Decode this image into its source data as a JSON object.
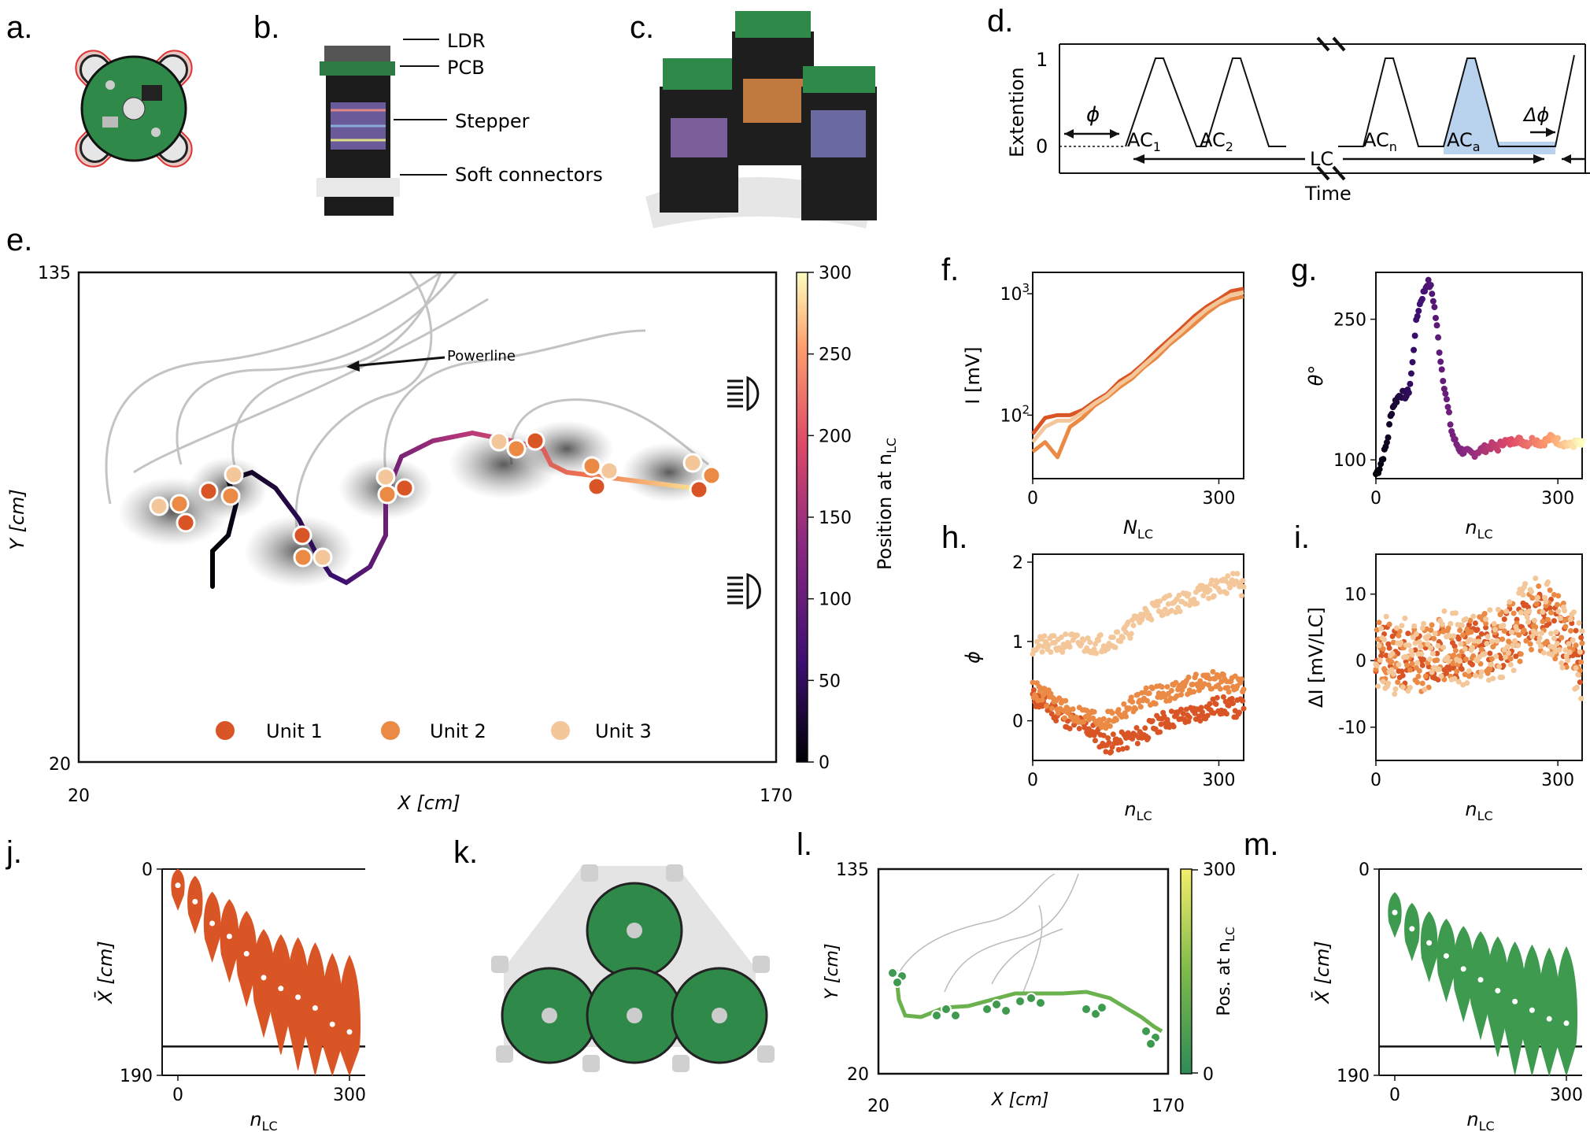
{
  "panel_labels": {
    "a": "a.",
    "b": "b.",
    "c": "c.",
    "d": "d.",
    "e": "e.",
    "f": "f.",
    "g": "g.",
    "h": "h.",
    "i": "i.",
    "j": "j.",
    "k": "k.",
    "l": "l.",
    "m": "m."
  },
  "panel_b": {
    "labels": [
      "LDR",
      "PCB",
      "Stepper",
      "Soft connectors"
    ]
  },
  "panel_d": {
    "ylabel": "Extention",
    "xlabel": "Time",
    "y1": "1",
    "y0": "0",
    "phi": "ϕ",
    "dphi": "Δϕ",
    "lc": "LC",
    "cycles": [
      {
        "base": "AC",
        "sub": "1"
      },
      {
        "base": "AC",
        "sub": "2"
      },
      {
        "base": "AC",
        "sub": "n"
      },
      {
        "base": "AC",
        "sub": "a"
      }
    ]
  },
  "colors": {
    "unit1": "#d95525",
    "unit2": "#ea8a45",
    "unit3": "#f4c79a",
    "green": "#3e9a4f",
    "accent_blue": "#b9d3ee"
  },
  "panel_e": {
    "xlabel": "X [cm]",
    "ylabel": "Y [cm]",
    "x_ticks": [
      "20",
      "170"
    ],
    "y_ticks": [
      "135",
      "20"
    ],
    "powerline": "Powerline",
    "colorbar_label": "Position at n",
    "colorbar_sub": "LC",
    "colorbar_ticks": [
      "300",
      "250",
      "200",
      "150",
      "100",
      "50",
      "0"
    ],
    "legend": [
      "Unit 1",
      "Unit 2",
      "Unit 3"
    ]
  },
  "chart_data": [
    {
      "panel": "f",
      "type": "line",
      "xlabel": "N",
      "xlabel_sub": "LC",
      "ylabel": "I [mV]",
      "yscale": "log",
      "xlim": [
        0,
        340
      ],
      "ylim": [
        30,
        1500
      ],
      "x_ticks": [
        "0",
        "300"
      ],
      "y_ticks": [
        "10",
        "10"
      ],
      "y_ticks_sup": [
        "3",
        "2"
      ],
      "series": [
        {
          "name": "Unit 1",
          "color": "#d95525",
          "x": [
            0,
            20,
            40,
            60,
            80,
            100,
            120,
            140,
            160,
            180,
            200,
            220,
            240,
            260,
            280,
            300,
            320,
            340
          ],
          "y": [
            70,
            95,
            100,
            100,
            110,
            130,
            150,
            190,
            220,
            270,
            340,
            420,
            520,
            650,
            780,
            900,
            1050,
            1100
          ]
        },
        {
          "name": "Unit 2",
          "color": "#ea8a45",
          "x": [
            0,
            20,
            40,
            60,
            80,
            100,
            120,
            140,
            160,
            180,
            200,
            220,
            240,
            260,
            280,
            300,
            320,
            340
          ],
          "y": [
            50,
            60,
            45,
            80,
            95,
            120,
            140,
            170,
            200,
            250,
            300,
            380,
            460,
            560,
            690,
            820,
            900,
            950
          ]
        },
        {
          "name": "Unit 3",
          "color": "#f4c79a",
          "x": [
            0,
            20,
            40,
            60,
            80,
            100,
            120,
            140,
            160,
            180,
            200,
            220,
            240,
            260,
            280,
            300,
            320,
            340
          ],
          "y": [
            60,
            80,
            90,
            90,
            105,
            125,
            145,
            180,
            210,
            260,
            320,
            400,
            490,
            610,
            740,
            860,
            980,
            1030
          ]
        }
      ]
    },
    {
      "panel": "g",
      "type": "scatter",
      "xlabel": "n",
      "xlabel_sub": "LC",
      "ylabel": "θ°",
      "xlim": [
        0,
        340
      ],
      "ylim": [
        80,
        300
      ],
      "x_ticks": [
        "0",
        "300"
      ],
      "y_ticks": [
        "250",
        "100"
      ],
      "series": [
        {
          "x": [
            0,
            5,
            10,
            15,
            20,
            25,
            30,
            35,
            40,
            45,
            50,
            55,
            60,
            65,
            70,
            75,
            80,
            85,
            90,
            95,
            100,
            105,
            110,
            115,
            120,
            125,
            130,
            140,
            150,
            160,
            170,
            180,
            190,
            200,
            210,
            220,
            230,
            240,
            250,
            260,
            270,
            280,
            290,
            300,
            310,
            320,
            330,
            340
          ],
          "y": [
            85,
            90,
            100,
            110,
            125,
            150,
            160,
            165,
            170,
            170,
            168,
            175,
            200,
            240,
            260,
            272,
            280,
            290,
            285,
            270,
            245,
            215,
            190,
            170,
            150,
            130,
            120,
            110,
            108,
            106,
            110,
            112,
            115,
            112,
            120,
            118,
            122,
            120,
            118,
            122,
            118,
            120,
            124,
            120,
            118,
            115,
            118,
            116
          ]
        }
      ]
    },
    {
      "panel": "h",
      "type": "scatter",
      "xlabel": "n",
      "xlabel_sub": "LC",
      "ylabel": "ϕ",
      "xlim": [
        0,
        340
      ],
      "ylim": [
        -0.5,
        2.1
      ],
      "x_ticks": [
        "0",
        "300"
      ],
      "y_ticks": [
        "2",
        "1",
        "0"
      ],
      "series": [
        {
          "name": "Unit 1",
          "color": "#d95525",
          "x": [
            0,
            30,
            60,
            90,
            120,
            150,
            180,
            210,
            240,
            270,
            300,
            330,
            340
          ],
          "y": [
            0.3,
            0.15,
            0.0,
            -0.1,
            -0.3,
            -0.25,
            -0.15,
            0.0,
            0.05,
            0.1,
            0.2,
            0.15,
            0.2
          ]
        },
        {
          "name": "Unit 2",
          "color": "#ea8a45",
          "x": [
            0,
            30,
            60,
            90,
            120,
            150,
            180,
            210,
            240,
            270,
            300,
            330,
            340
          ],
          "y": [
            0.4,
            0.25,
            0.1,
            0.05,
            0.0,
            0.15,
            0.3,
            0.35,
            0.4,
            0.5,
            0.5,
            0.45,
            0.4
          ]
        },
        {
          "name": "Unit 3",
          "color": "#f4c79a",
          "x": [
            0,
            30,
            60,
            90,
            120,
            150,
            180,
            210,
            240,
            270,
            300,
            330,
            340
          ],
          "y": [
            0.95,
            0.95,
            1.0,
            0.95,
            1.0,
            1.1,
            1.35,
            1.45,
            1.5,
            1.6,
            1.7,
            1.75,
            1.65
          ]
        }
      ]
    },
    {
      "panel": "i",
      "type": "scatter",
      "xlabel": "n",
      "xlabel_sub": "LC",
      "ylabel": "ΔI [mV/LC]",
      "xlim": [
        0,
        340
      ],
      "ylim": [
        -15,
        16
      ],
      "x_ticks": [
        "0",
        "300"
      ],
      "y_ticks": [
        "10",
        "0",
        "-10"
      ],
      "series": [
        {
          "x": [
            0,
            20,
            40,
            60,
            80,
            100,
            120,
            140,
            160,
            180,
            200,
            220,
            240,
            260,
            280,
            300,
            320,
            340
          ],
          "y": [
            2,
            1,
            0,
            1,
            0,
            1,
            2,
            1,
            2,
            3,
            2,
            4,
            5,
            7,
            6,
            5,
            2,
            0
          ]
        }
      ]
    },
    {
      "panel": "j",
      "type": "violin",
      "xlabel": "n",
      "xlabel_sub": "LC",
      "ylabel": "X̄ [cm]",
      "ylim": [
        0,
        190
      ],
      "x_ticks": [
        "0",
        "300"
      ],
      "y_ticks": [
        "0",
        "190"
      ],
      "color": "#d95525",
      "x": [
        0,
        30,
        60,
        90,
        120,
        150,
        180,
        210,
        240,
        270,
        300
      ],
      "medians": [
        15,
        30,
        50,
        62,
        78,
        100,
        110,
        118,
        128,
        143,
        150
      ]
    },
    {
      "panel": "l",
      "type": "line",
      "xlabel": "X [cm]",
      "ylabel": "Y [cm]",
      "x_ticks": [
        "20",
        "170"
      ],
      "y_ticks": [
        "135",
        "20"
      ],
      "colorbar_label": "Pos. at n",
      "colorbar_sub": "LC",
      "colorbar_ticks": [
        "300",
        "0"
      ]
    },
    {
      "panel": "m",
      "type": "violin",
      "xlabel": "n",
      "xlabel_sub": "LC",
      "ylabel": "X̄ [cm]",
      "ylim": [
        0,
        190
      ],
      "x_ticks": [
        "0",
        "300"
      ],
      "y_ticks": [
        "0",
        "190"
      ],
      "color": "#3e9a4f",
      "x": [
        0,
        30,
        60,
        90,
        120,
        150,
        180,
        210,
        240,
        270,
        300
      ],
      "medians": [
        40,
        55,
        68,
        80,
        92,
        102,
        112,
        122,
        130,
        138,
        142
      ]
    }
  ]
}
